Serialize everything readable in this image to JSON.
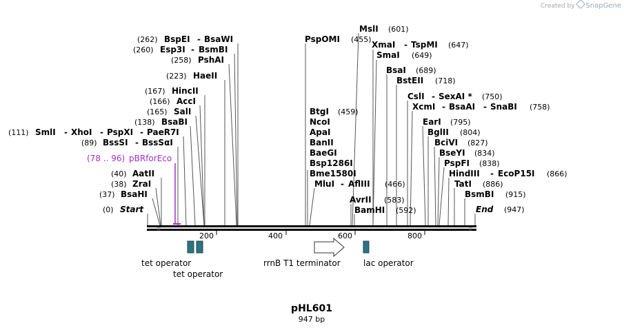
{
  "credit": {
    "prefix": "Created by",
    "brand": "SnapGene"
  },
  "plasmid": {
    "name": "pHL601",
    "length_label": "947 bp",
    "length": 947
  },
  "scale_ticks": [
    {
      "value": 200,
      "label": "200"
    },
    {
      "value": 400,
      "label": "400"
    },
    {
      "value": 600,
      "label": "600"
    },
    {
      "value": 800,
      "label": "800"
    }
  ],
  "sites": [
    {
      "id": "s262",
      "name": "BspEI",
      "sep": "-",
      "name2": "BsaWI",
      "pos": "(262)",
      "bp": 262
    },
    {
      "id": "s260",
      "name": "Esp3I",
      "sep": "-",
      "name2": "BsmBI",
      "pos": "(260)",
      "bp": 260
    },
    {
      "id": "s258",
      "name": "PshAI",
      "pos": "(258)",
      "bp": 258
    },
    {
      "id": "s223",
      "name": "HaeII",
      "pos": "(223)",
      "bp": 223
    },
    {
      "id": "s167",
      "name": "HincII",
      "pos": "(167)",
      "bp": 167
    },
    {
      "id": "s166",
      "name": "AccI",
      "pos": "(166)",
      "bp": 166
    },
    {
      "id": "s165",
      "name": "SalI",
      "pos": "(165)",
      "bp": 165
    },
    {
      "id": "s138",
      "name": "BsaBI",
      "pos": "(138)",
      "bp": 138
    },
    {
      "id": "s111",
      "name": "SmlI",
      "sep": "-",
      "name2": "XhoI",
      "sep2": "-",
      "name3": "PspXI",
      "sep3": "-",
      "name4": "PaeR7I",
      "pos": "(111)",
      "bp": 111
    },
    {
      "id": "s89",
      "name": "BssSI",
      "sep": "-",
      "name2": "BssSαI",
      "pos": "(89)",
      "bp": 89
    },
    {
      "id": "s40",
      "name": "AatII",
      "pos": "(40)",
      "bp": 40
    },
    {
      "id": "s38",
      "name": "ZraI",
      "pos": "(38)",
      "bp": 38
    },
    {
      "id": "s37",
      "name": "BsaHI",
      "pos": "(37)",
      "bp": 37
    },
    {
      "id": "start",
      "name": "Start",
      "pos": "(0)",
      "bp": 0,
      "italic": true
    },
    {
      "id": "s455",
      "name": "PspOMI",
      "pos": "(455)",
      "bp": 455
    },
    {
      "id": "s601",
      "name": "MslI",
      "pos": "(601)",
      "bp": 601
    },
    {
      "id": "s647",
      "name": "XmaI",
      "sep": "-",
      "name2": "TspMI",
      "pos": "(647)",
      "bp": 647
    },
    {
      "id": "s649",
      "name": "SmaI",
      "pos": "(649)",
      "bp": 649
    },
    {
      "id": "s689",
      "name": "BsaI",
      "pos": "(689)",
      "bp": 689
    },
    {
      "id": "s718",
      "name": "BstEII",
      "pos": "(718)",
      "bp": 718
    },
    {
      "id": "s750",
      "name": "CslI",
      "sep": "-",
      "name2": "SexAI *",
      "pos": "(750)",
      "bp": 750
    },
    {
      "id": "s758",
      "name": "XcmI",
      "sep": "-",
      "name2": "BsaAI",
      "sep2": "-",
      "name3": "SnaBI",
      "pos": "(758)",
      "bp": 758
    },
    {
      "id": "s459",
      "name": "BtgI",
      "pos": "(459)",
      "bp": 459
    },
    {
      "id": "ncoI",
      "name": "NcoI",
      "bp": 459
    },
    {
      "id": "apaI",
      "name": "ApaI",
      "bp": 459
    },
    {
      "id": "banII",
      "name": "BanII",
      "bp": 459
    },
    {
      "id": "baeGI",
      "name": "BaeGI",
      "bp": 459
    },
    {
      "id": "bsp1286I",
      "name": "Bsp1286I",
      "bp": 459
    },
    {
      "id": "bme1580I",
      "name": "Bme1580I",
      "bp": 459
    },
    {
      "id": "s466",
      "name": "MluI",
      "sep": "-",
      "name2": "AflIII",
      "pos": "(466)",
      "bp": 466
    },
    {
      "id": "s583",
      "name": "AvrII",
      "pos": "(583)",
      "bp": 583
    },
    {
      "id": "s592",
      "name": "BamHI",
      "pos": "(592)",
      "bp": 592
    },
    {
      "id": "s795",
      "name": "EarI",
      "pos": "(795)",
      "bp": 795
    },
    {
      "id": "s804",
      "name": "BglII",
      "pos": "(804)",
      "bp": 804
    },
    {
      "id": "s827",
      "name": "BciVI",
      "pos": "(827)",
      "bp": 827
    },
    {
      "id": "s834",
      "name": "BseYI",
      "pos": "(834)",
      "bp": 834
    },
    {
      "id": "s838",
      "name": "PspFI",
      "pos": "(838)",
      "bp": 838
    },
    {
      "id": "s866",
      "name": "HindIII",
      "sep": "-",
      "name2": "EcoP15I",
      "pos": "(866)",
      "bp": 866
    },
    {
      "id": "s886",
      "name": "TatI",
      "pos": "(886)",
      "bp": 886
    },
    {
      "id": "s915",
      "name": "BsmBI",
      "pos": "(915)",
      "bp": 915
    },
    {
      "id": "end",
      "name": "End",
      "pos": "(947)",
      "bp": 947,
      "italic": true
    }
  ],
  "primer": {
    "range": "(78 .. 96)",
    "name": "pBRforEco",
    "color": "#a030c8"
  },
  "features": [
    {
      "id": "tet1",
      "label": "tet operator",
      "color": "#2e7380"
    },
    {
      "id": "tet2",
      "label": "tet operator",
      "color": "#2e7380"
    },
    {
      "id": "rrnb",
      "label": "rrnB T1 terminator",
      "color": "#ffffff"
    },
    {
      "id": "lac",
      "label": "lac operator",
      "color": "#2e7380"
    }
  ]
}
